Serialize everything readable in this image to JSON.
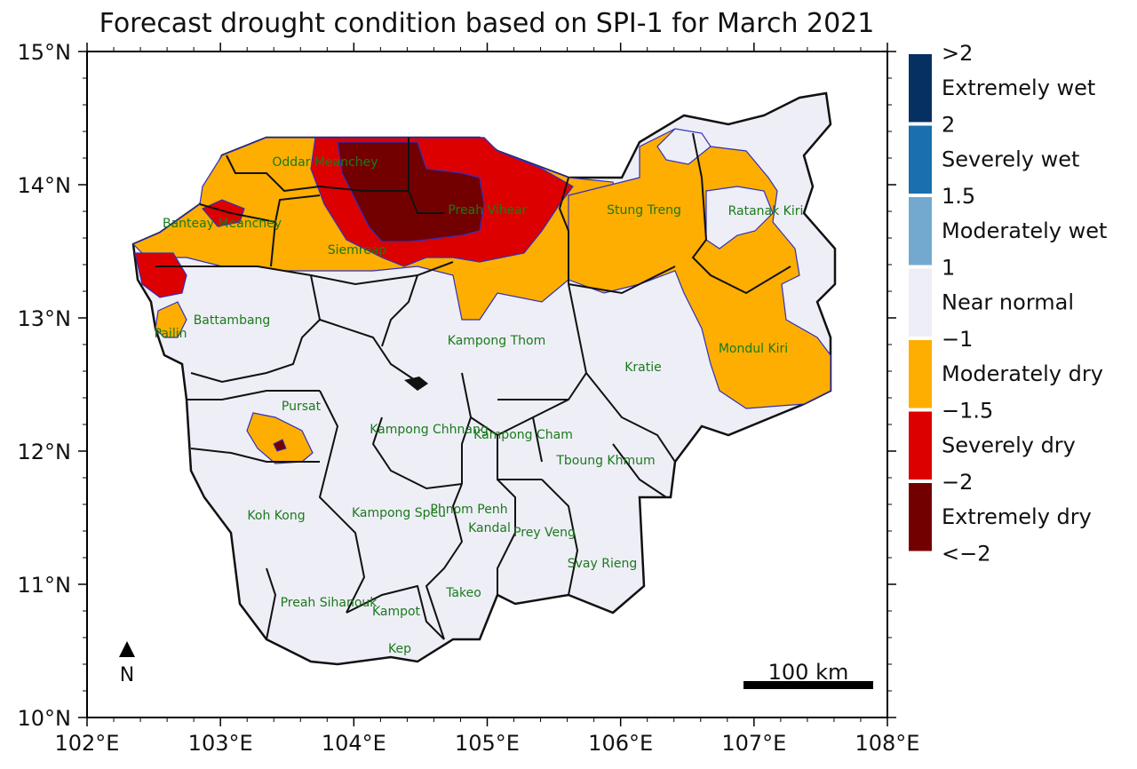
{
  "title": "Forecast drought condition based on SPI-1 for March 2021",
  "axes": {
    "x_ticks": [
      "102°E",
      "103°E",
      "104°E",
      "105°E",
      "106°E",
      "107°E",
      "108°E"
    ],
    "y_ticks": [
      "15°N",
      "14°N",
      "13°N",
      "12°N",
      "11°N",
      "10°N"
    ]
  },
  "north_arrow": {
    "label": "N"
  },
  "scale_bar": {
    "label": "100 km"
  },
  "legend": {
    "boundaries": [
      ">2",
      "2",
      "1.5",
      "1",
      "−1",
      "−1.5",
      "−2",
      "<−2"
    ],
    "classes": [
      {
        "label": "Extremely wet",
        "color": "#053061"
      },
      {
        "label": "Severely wet",
        "color": "#1a6faf"
      },
      {
        "label": "Moderately wet",
        "color": "#73a9cf"
      },
      {
        "label": "Near normal",
        "color": "#eeeef7"
      },
      {
        "label": "Moderately dry",
        "color": "#fdae00"
      },
      {
        "label": "Severely dry",
        "color": "#dd0000"
      },
      {
        "label": "Extremely dry",
        "color": "#730000"
      }
    ]
  },
  "provinces": [
    "Oddar Meanchey",
    "Banteay Meanchey",
    "Siemreap",
    "Preah Vihear",
    "Stung Treng",
    "Ratanak Kiri",
    "Battambang",
    "Pailin",
    "Kampong Thom",
    "Kratie",
    "Mondul Kiri",
    "Pursat",
    "Kampong Chhnang",
    "Kampong Cham",
    "Tboung Khmum",
    "Koh Kong",
    "Kampong Speu",
    "Phnom Penh",
    "Kandal",
    "Prey Veng",
    "Svay Rieng",
    "Preah Sihanouk",
    "Kampot",
    "Takeo",
    "Kep"
  ]
}
